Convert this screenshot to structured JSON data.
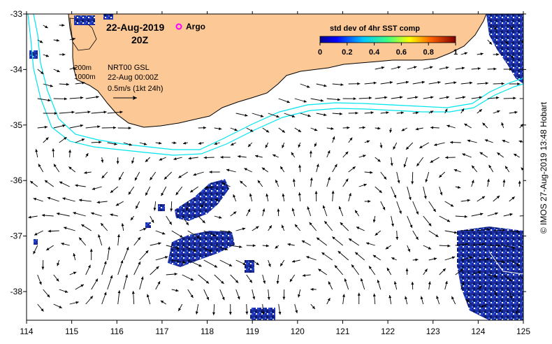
{
  "map": {
    "date_label": "22-Aug-2019",
    "time_label": "20Z",
    "argo_label": "Argo",
    "colorbar": {
      "title": "std dev of 4hr SST comp",
      "ticks": [
        "0",
        "0.2",
        "0.4",
        "0.6",
        "0.8",
        "1"
      ]
    },
    "contour_labels": [
      "200m",
      "1000m"
    ],
    "product_label": "NRT00 GSL",
    "vector_time_label": "22-Aug 00:00Z",
    "vector_scale_label": "0.5m/s (1kt 24h)",
    "x_ticks": [
      "114",
      "115",
      "116",
      "117",
      "118",
      "119",
      "120",
      "121",
      "122",
      "123",
      "124",
      "125"
    ],
    "y_ticks": [
      "-33",
      "-34",
      "-35",
      "-36",
      "-37",
      "-38"
    ],
    "credit": "© IMOS 27-Aug-2019 13:48 Hobart",
    "colors": {
      "land": "#fbc896",
      "contour": "#00e5ee",
      "argo": "#ff00ff",
      "sst_patch": "#1c2c9c"
    }
  }
}
